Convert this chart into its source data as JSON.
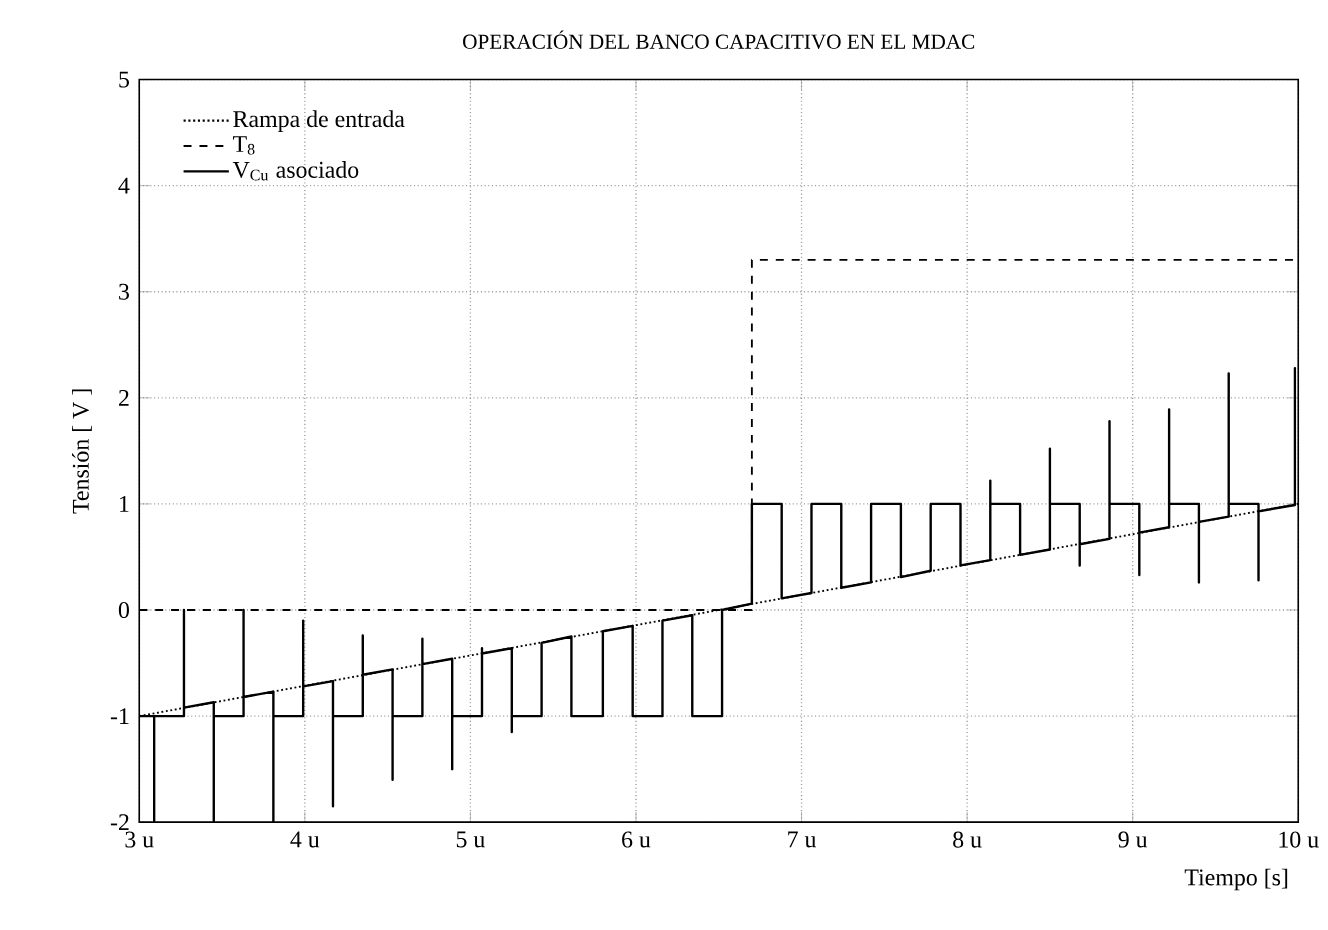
{
  "chart_data": {
    "type": "line",
    "title": "OPERACIÓN DEL BANCO CAPACITIVO EN EL MDAC",
    "xlabel": "Tiempo [s]",
    "ylabel": "Tensión [ V ]",
    "xlim": [
      3,
      10
    ],
    "ylim": [
      -2,
      5
    ],
    "xticks": [
      {
        "value": 3,
        "label": "3 u"
      },
      {
        "value": 4,
        "label": "4 u"
      },
      {
        "value": 5,
        "label": "5 u"
      },
      {
        "value": 6,
        "label": "6 u"
      },
      {
        "value": 7,
        "label": "7 u"
      },
      {
        "value": 8,
        "label": "8 u"
      },
      {
        "value": 9,
        "label": "9 u"
      },
      {
        "value": 10,
        "label": "10 u"
      }
    ],
    "yticks": [
      -2,
      -1,
      0,
      1,
      2,
      3,
      4,
      5
    ],
    "grid": true,
    "legend": "top left",
    "series": [
      {
        "name": "Rampa de entrada",
        "color": "#000000",
        "line_style": "dotted",
        "x": [
          3,
          10
        ],
        "values": [
          -1,
          1
        ]
      },
      {
        "name": "T$_{8}$",
        "color": "#000000",
        "line_style": "dashed",
        "x": [
          3,
          6.7,
          6.7,
          10
        ],
        "values": [
          0,
          0,
          3.3,
          3.3
        ]
      },
      {
        "name": "V$_{Cu}$ asociado",
        "color": "#000000",
        "line_style": "solid",
        "x": [
          3.0,
          3.09,
          3.09,
          3.09,
          3.27,
          3.27,
          3.27,
          3.45,
          3.45,
          3.45,
          3.63,
          3.63,
          3.63,
          3.81,
          3.81,
          3.81,
          3.99,
          3.99,
          3.99,
          4.17,
          4.17,
          4.17,
          4.35,
          4.35,
          4.35,
          4.53,
          4.53,
          4.53,
          4.71,
          4.71,
          4.71,
          4.89,
          4.89,
          4.89,
          5.07,
          5.07,
          5.07,
          5.25,
          5.25,
          5.25,
          5.43,
          5.43,
          5.61,
          5.61,
          5.8,
          5.8,
          5.98,
          5.98,
          6.16,
          6.16,
          6.34,
          6.34,
          6.52,
          6.52,
          6.7,
          6.7,
          6.88,
          6.88,
          7.06,
          7.06,
          7.24,
          7.24,
          7.42,
          7.42,
          7.6,
          7.6,
          7.78,
          7.78,
          7.96,
          7.96,
          8.14,
          8.14,
          8.14,
          8.32,
          8.32,
          8.5,
          8.5,
          8.5,
          8.68,
          8.68,
          8.68,
          8.86,
          8.86,
          8.86,
          9.04,
          9.04,
          9.04,
          9.22,
          9.22,
          9.22,
          9.4,
          9.4,
          9.4,
          9.58,
          9.58,
          9.58,
          9.76,
          9.76,
          9.76,
          9.98,
          9.98,
          9.98
        ],
        "values": [
          -1,
          -1,
          -2,
          -1,
          -1,
          0,
          -0.92,
          -0.87,
          -2,
          -1,
          -1,
          0,
          -0.82,
          -0.77,
          -2,
          -1,
          -1,
          -0.1,
          -0.72,
          -0.67,
          -1.85,
          -1,
          -1,
          -0.24,
          -0.61,
          -0.56,
          -1.6,
          -1,
          -1,
          -0.27,
          -0.51,
          -0.46,
          -1.5,
          -1,
          -1,
          -0.36,
          -0.41,
          -0.36,
          -1.15,
          -1,
          -1,
          -0.31,
          -0.25,
          -1,
          -1,
          -0.2,
          -0.15,
          -1,
          -1,
          -0.1,
          -0.05,
          -1,
          -1,
          0,
          0.06,
          1,
          1,
          0.11,
          0.16,
          1,
          1,
          0.21,
          0.26,
          1,
          1,
          0.31,
          0.37,
          1,
          1,
          0.42,
          0.47,
          1.22,
          1,
          1,
          0.52,
          0.57,
          1.52,
          1,
          1,
          0.42,
          0.62,
          0.67,
          1.78,
          1,
          1,
          0.33,
          0.73,
          0.78,
          1.89,
          1,
          1,
          0.26,
          0.83,
          0.88,
          2.23,
          1,
          1,
          0.28,
          0.93,
          0.99,
          2.28,
          1
        ]
      }
    ]
  }
}
